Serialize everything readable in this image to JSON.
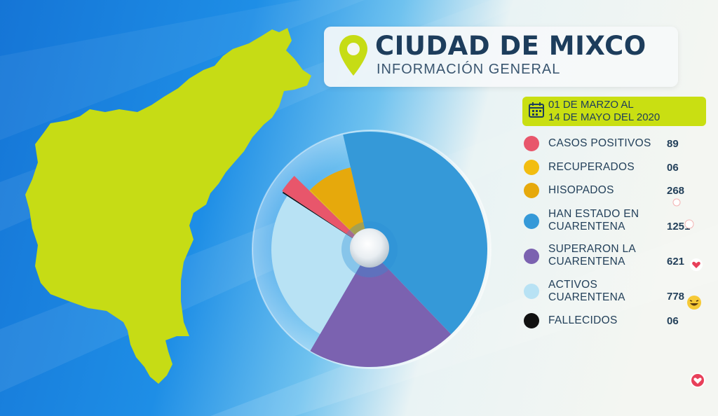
{
  "header": {
    "title": "CIUDAD DE MIXCO",
    "subtitle": "INFORMACIÓN GENERAL"
  },
  "date_range": {
    "line1": "01 DE MARZO AL",
    "line2": "14 DE MAYO DEL 2020"
  },
  "legend": [
    {
      "label_lines": [
        "CASOS POSITIVOS"
      ],
      "value": "89",
      "color": "#e8566b"
    },
    {
      "label_lines": [
        "RECUPERADOS"
      ],
      "value": "06",
      "color": "#f2bd10"
    },
    {
      "label_lines": [
        "HISOPADOS"
      ],
      "value": "268",
      "color": "#e6a90c"
    },
    {
      "label_lines": [
        "HAN ESTADO EN",
        "CUARENTENA"
      ],
      "value": "1251",
      "color": "#3599d8"
    },
    {
      "label_lines": [
        "SUPERARON LA",
        "CUARENTENA"
      ],
      "value": "621",
      "color": "#7b62b0"
    },
    {
      "label_lines": [
        "ACTIVOS",
        "CUARENTENA"
      ],
      "value": "778",
      "color": "#b8e2f4"
    },
    {
      "label_lines": [
        "FALLECIDOS"
      ],
      "value": "06",
      "color": "#111111"
    }
  ],
  "colors": {
    "map_fill": "#c6dc15",
    "accent": "#c9df12",
    "title_text": "#1d3d5c"
  },
  "chart_data": {
    "type": "pie",
    "series": [
      {
        "label": "CASOS POSITIVOS",
        "value": 89
      },
      {
        "label": "RECUPERADOS",
        "value": 6
      },
      {
        "label": "HISOPADOS",
        "value": 268
      },
      {
        "label": "HAN ESTADO EN CUARENTENA",
        "value": 1251
      },
      {
        "label": "SUPERARON LA CUARENTENA",
        "value": 621
      },
      {
        "label": "ACTIVOS CUARENTENA",
        "value": 778
      },
      {
        "label": "FALLECIDOS",
        "value": 6
      }
    ],
    "legend_position": "right"
  }
}
